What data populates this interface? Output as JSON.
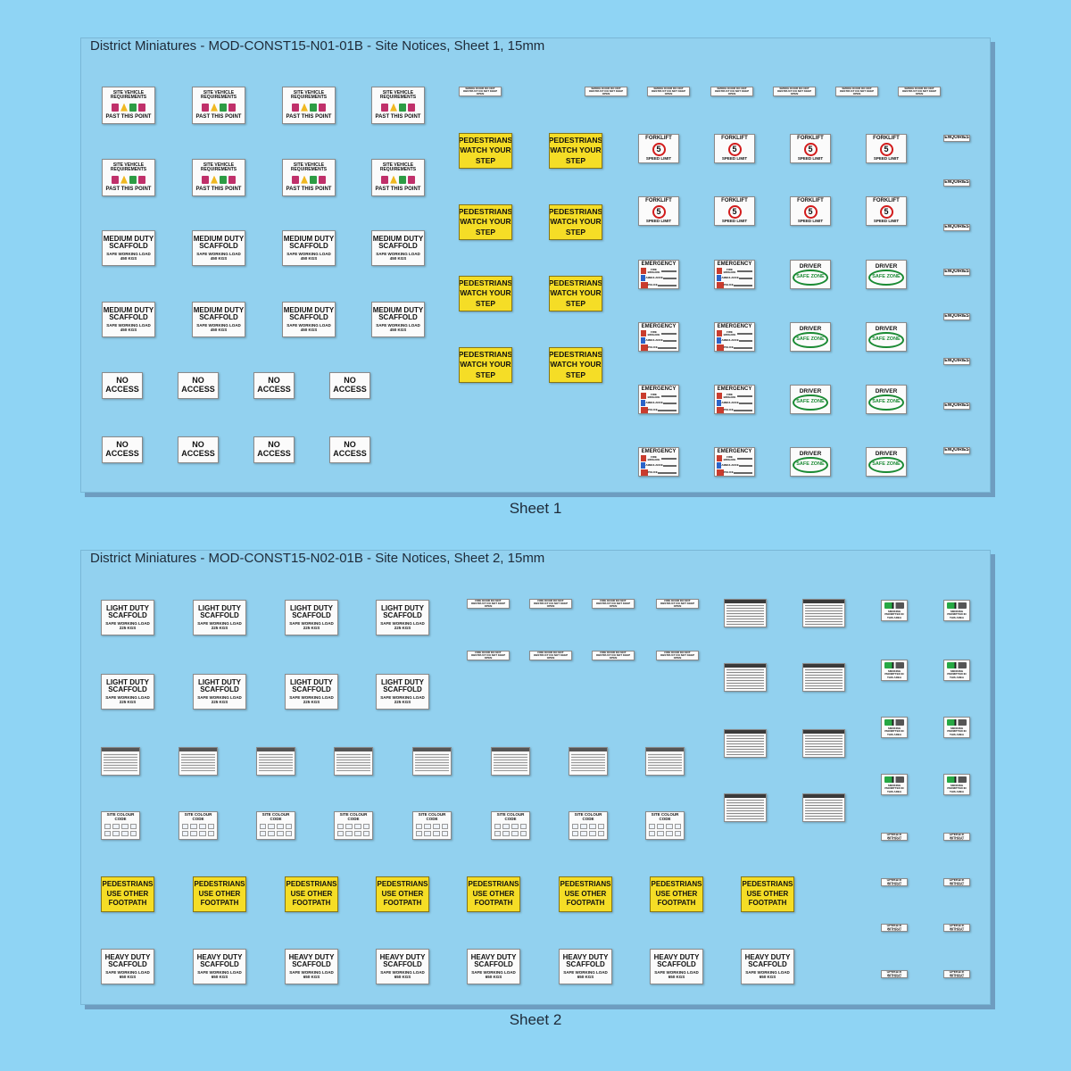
{
  "sheet1": {
    "title": "District Miniatures - MOD-CONST15-N01-01B - Site Notices, Sheet 1, 15mm",
    "caption": "Sheet 1",
    "site_vehicle": {
      "heading": "SITE VEHICLE REQUIREMENTS",
      "footer": "PAST THIS POINT"
    },
    "medium_scaffold": {
      "title": "MEDIUM DUTY SCAFFOLD",
      "sub": "SAFE WORKING LOAD",
      "load": "450 KGS"
    },
    "no_access": "NO ACCESS",
    "pedestrians": "PEDESTRIANS WATCH YOUR STEP",
    "smoke_door": "SMOKE DOOR DO NOT OBSTRUCT DO NOT KEEP OPEN",
    "forklift": {
      "heading": "FORKLIFT",
      "speed": "5",
      "footer": "SPEED LIMIT"
    },
    "emergency": {
      "heading": "EMERGENCY",
      "rows": [
        "FIRE BRIGADE",
        "AMBULANCE",
        "POLICE"
      ],
      "number": "000"
    },
    "driver_zone": {
      "heading": "DRIVER",
      "zone": "SAFE ZONE"
    },
    "enquiries": "ENQUIRIES"
  },
  "sheet2": {
    "title": "District Miniatures - MOD-CONST15-N02-01B - Site Notices, Sheet 2, 15mm",
    "caption": "Sheet 2",
    "light_scaffold": {
      "title": "LIGHT DUTY SCAFFOLD",
      "sub": "SAFE WORKING LOAD",
      "load": "225 KGS"
    },
    "fire_door": "FIRE DOOR DO NOT OBSTRUCT DO NOT KEEP OPEN",
    "site_colour_code": "SITE COLOUR CODE",
    "pedestrians_footpath": "PEDESTRIANS USE OTHER FOOTPATH",
    "heavy_scaffold": {
      "title": "HEAVY DUTY SCAFFOLD",
      "sub": "SAFE WORKING LOAD",
      "load": "650 KGS"
    },
    "smoking": "SMOKING PERMITTED IN THIS AREA",
    "do_not_operate": "DO NOT OPERATE WITHOUT GUARDS"
  },
  "colors": {
    "background": "#8fd4f4",
    "panel": "#92d1ef",
    "yellow_sign": "#f5dd26",
    "red": "#d21c1c",
    "green": "#1a8a33"
  }
}
